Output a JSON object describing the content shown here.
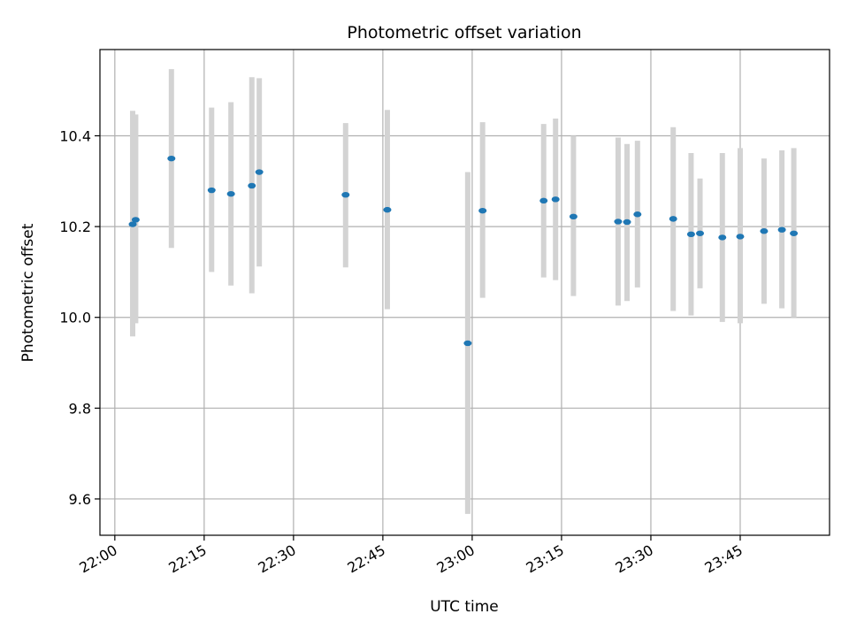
{
  "chart_data": {
    "type": "scatter",
    "title": "Photometric offset variation",
    "xlabel": "UTC time",
    "ylabel": "Photometric offset",
    "x_ticks": [
      "22:00",
      "22:15",
      "22:30",
      "22:45",
      "23:00",
      "23:15",
      "23:30",
      "23:45"
    ],
    "y_ticks": [
      "9.6",
      "9.8",
      "10.0",
      "10.2",
      "10.4"
    ],
    "y_tick_values": [
      9.6,
      9.8,
      10.0,
      10.2,
      10.4
    ],
    "xlim": [
      "21:57:30",
      "24:00:00"
    ],
    "ylim": [
      9.52,
      10.59
    ],
    "grid": true,
    "colors": {
      "points": "#1f77b4",
      "error_bars": "#d3d3d3",
      "grid": "#b0b0b0"
    },
    "points": [
      {
        "time": "22:03:00",
        "y": 10.205,
        "err_low": 9.958,
        "err_high": 10.455
      },
      {
        "time": "22:03:30",
        "y": 10.215,
        "err_low": 9.987,
        "err_high": 10.447
      },
      {
        "time": "22:09:30",
        "y": 10.35,
        "err_low": 10.153,
        "err_high": 10.547
      },
      {
        "time": "22:16:15",
        "y": 10.28,
        "err_low": 10.1,
        "err_high": 10.462
      },
      {
        "time": "22:19:30",
        "y": 10.272,
        "err_low": 10.07,
        "err_high": 10.474
      },
      {
        "time": "22:23:00",
        "y": 10.29,
        "err_low": 10.053,
        "err_high": 10.529
      },
      {
        "time": "22:24:15",
        "y": 10.32,
        "err_low": 10.112,
        "err_high": 10.527
      },
      {
        "time": "22:38:45",
        "y": 10.27,
        "err_low": 10.11,
        "err_high": 10.428
      },
      {
        "time": "22:45:45",
        "y": 10.237,
        "err_low": 10.018,
        "err_high": 10.457
      },
      {
        "time": "22:59:15",
        "y": 9.943,
        "err_low": 9.567,
        "err_high": 10.32
      },
      {
        "time": "23:01:45",
        "y": 10.235,
        "err_low": 10.043,
        "err_high": 10.43
      },
      {
        "time": "23:12:00",
        "y": 10.257,
        "err_low": 10.088,
        "err_high": 10.426
      },
      {
        "time": "23:14:00",
        "y": 10.26,
        "err_low": 10.082,
        "err_high": 10.438
      },
      {
        "time": "23:17:00",
        "y": 10.222,
        "err_low": 10.047,
        "err_high": 10.4
      },
      {
        "time": "23:24:30",
        "y": 10.211,
        "err_low": 10.026,
        "err_high": 10.396
      },
      {
        "time": "23:26:00",
        "y": 10.21,
        "err_low": 10.036,
        "err_high": 10.382
      },
      {
        "time": "23:27:45",
        "y": 10.227,
        "err_low": 10.066,
        "err_high": 10.389
      },
      {
        "time": "23:33:45",
        "y": 10.217,
        "err_low": 10.014,
        "err_high": 10.419
      },
      {
        "time": "23:36:45",
        "y": 10.183,
        "err_low": 10.004,
        "err_high": 10.362
      },
      {
        "time": "23:38:15",
        "y": 10.185,
        "err_low": 10.064,
        "err_high": 10.306
      },
      {
        "time": "23:42:00",
        "y": 10.176,
        "err_low": 9.99,
        "err_high": 10.362
      },
      {
        "time": "23:45:00",
        "y": 10.178,
        "err_low": 9.987,
        "err_high": 10.373
      },
      {
        "time": "23:49:00",
        "y": 10.19,
        "err_low": 10.03,
        "err_high": 10.35
      },
      {
        "time": "23:52:00",
        "y": 10.193,
        "err_low": 10.02,
        "err_high": 10.368
      },
      {
        "time": "23:54:00",
        "y": 10.185,
        "err_low": 10.0,
        "err_high": 10.373
      }
    ]
  }
}
